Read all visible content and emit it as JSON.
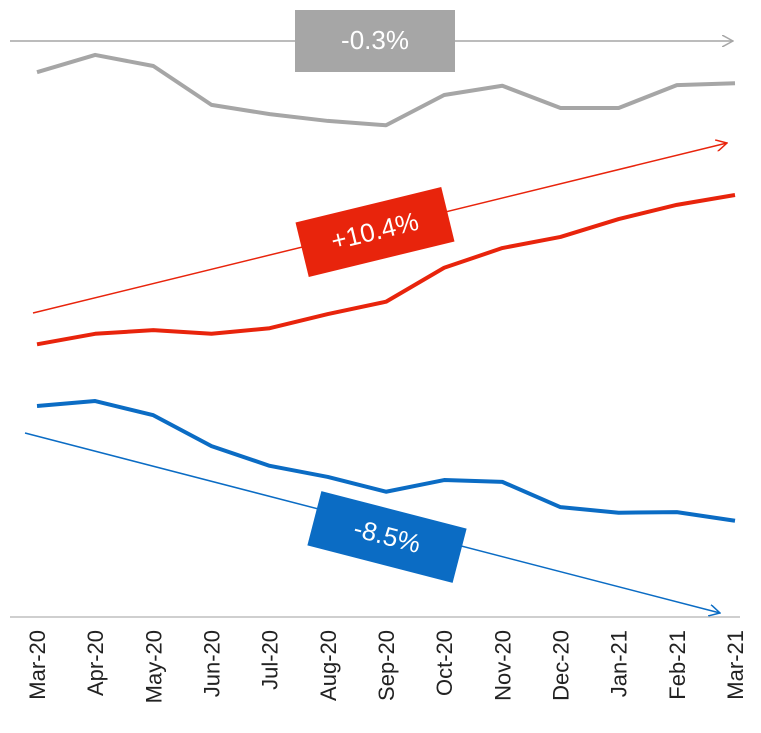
{
  "chart_data": {
    "type": "line",
    "categories": [
      "Mar-20",
      "Apr-20",
      "May-20",
      "Jun-20",
      "Jul-20",
      "Aug-20",
      "Sep-20",
      "Oct-20",
      "Nov-20",
      "Dec-20",
      "Jan-21",
      "Feb-21",
      "Mar-21"
    ],
    "series": [
      {
        "color": "#a6a6a6",
        "values": [
          88.3,
          91.1,
          89.3,
          83.0,
          81.5,
          80.4,
          79.7,
          84.6,
          86.1,
          82.5,
          82.5,
          86.2,
          86.5
        ]
      },
      {
        "color": "#e8240c",
        "values": [
          44.2,
          45.9,
          46.5,
          45.9,
          46.8,
          49.1,
          51.1,
          56.6,
          59.8,
          61.6,
          64.5,
          66.8,
          68.4
        ]
      },
      {
        "color": "#0b6cc4",
        "values": [
          34.2,
          35.0,
          32.7,
          27.7,
          24.5,
          22.7,
          20.3,
          22.2,
          21.9,
          17.8,
          16.9,
          17.0,
          15.6
        ]
      }
    ],
    "annotations": [
      "-0.3%",
      "+10.4%",
      "-8.5%"
    ],
    "ylim": [
      0,
      100
    ]
  }
}
